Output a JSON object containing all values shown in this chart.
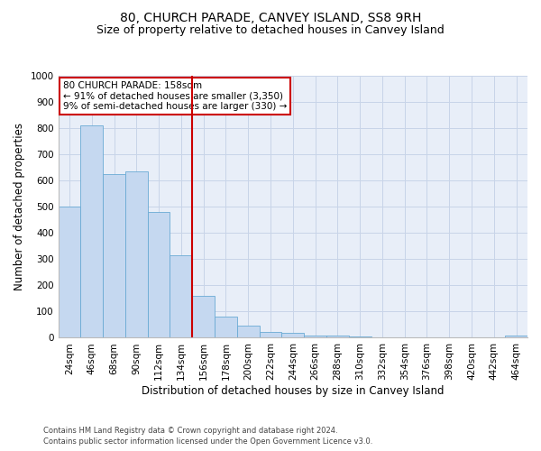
{
  "title1": "80, CHURCH PARADE, CANVEY ISLAND, SS8 9RH",
  "title2": "Size of property relative to detached houses in Canvey Island",
  "xlabel": "Distribution of detached houses by size in Canvey Island",
  "ylabel": "Number of detached properties",
  "footnote1": "Contains HM Land Registry data © Crown copyright and database right 2024.",
  "footnote2": "Contains public sector information licensed under the Open Government Licence v3.0.",
  "bar_labels": [
    "24sqm",
    "46sqm",
    "68sqm",
    "90sqm",
    "112sqm",
    "134sqm",
    "156sqm",
    "178sqm",
    "200sqm",
    "222sqm",
    "244sqm",
    "266sqm",
    "288sqm",
    "310sqm",
    "332sqm",
    "354sqm",
    "376sqm",
    "398sqm",
    "420sqm",
    "442sqm",
    "464sqm"
  ],
  "bar_values": [
    500,
    810,
    625,
    635,
    480,
    315,
    160,
    82,
    45,
    22,
    18,
    10,
    8,
    5,
    3,
    2,
    1,
    1,
    0,
    0,
    8
  ],
  "bar_color": "#c5d8f0",
  "bar_edge_color": "#6aaad4",
  "vline_color": "#cc0000",
  "annotation_text": "80 CHURCH PARADE: 158sqm\n← 91% of detached houses are smaller (3,350)\n9% of semi-detached houses are larger (330) →",
  "annotation_box_color": "#cc0000",
  "ylim": [
    0,
    1000
  ],
  "yticks": [
    0,
    100,
    200,
    300,
    400,
    500,
    600,
    700,
    800,
    900,
    1000
  ],
  "grid_color": "#c8d4e8",
  "bg_color": "#e8eef8",
  "title1_fontsize": 10,
  "title2_fontsize": 9,
  "xlabel_fontsize": 8.5,
  "ylabel_fontsize": 8.5,
  "tick_fontsize": 7.5,
  "annot_fontsize": 7.5,
  "footnote_fontsize": 6.0
}
